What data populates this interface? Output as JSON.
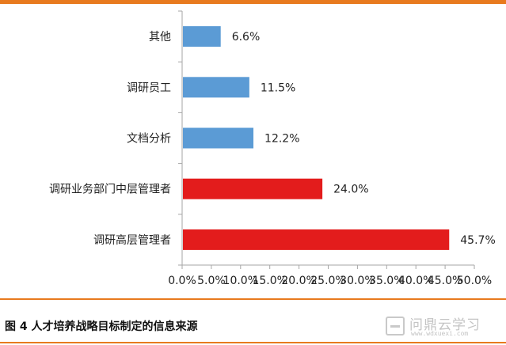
{
  "colors": {
    "accent_rule": "#e87a1e",
    "bar_blue": "#5b9bd5",
    "bar_red": "#e31c1c",
    "axis": "#a6a6a6",
    "text": "#222222"
  },
  "caption": "图 4 人才培养战略目标制定的信息来源",
  "watermark": {
    "text": "问鼎云学习",
    "url": "www.wdxuexi.com",
    "icon": "logo-icon"
  },
  "chart_data": {
    "type": "bar",
    "orientation": "horizontal",
    "title": "",
    "xlabel": "",
    "ylabel": "",
    "xlim": [
      0,
      50
    ],
    "x_ticks": [
      "0.0%",
      "5.0%",
      "10.0%",
      "15.0%",
      "20.0%",
      "25.0%",
      "30.0%",
      "35.0%",
      "40.0%",
      "45.0%",
      "50.0%"
    ],
    "grid": false,
    "categories": [
      "其他",
      "调研员工",
      "文档分析",
      "调研业务部门中层管理者",
      "调研高层管理者"
    ],
    "values": [
      6.6,
      11.5,
      12.2,
      24.0,
      45.7
    ],
    "labels": [
      "6.6%",
      "11.5%",
      "12.2%",
      "24.0%",
      "45.7%"
    ],
    "bar_colors": [
      "#5b9bd5",
      "#5b9bd5",
      "#5b9bd5",
      "#e31c1c",
      "#e31c1c"
    ]
  }
}
